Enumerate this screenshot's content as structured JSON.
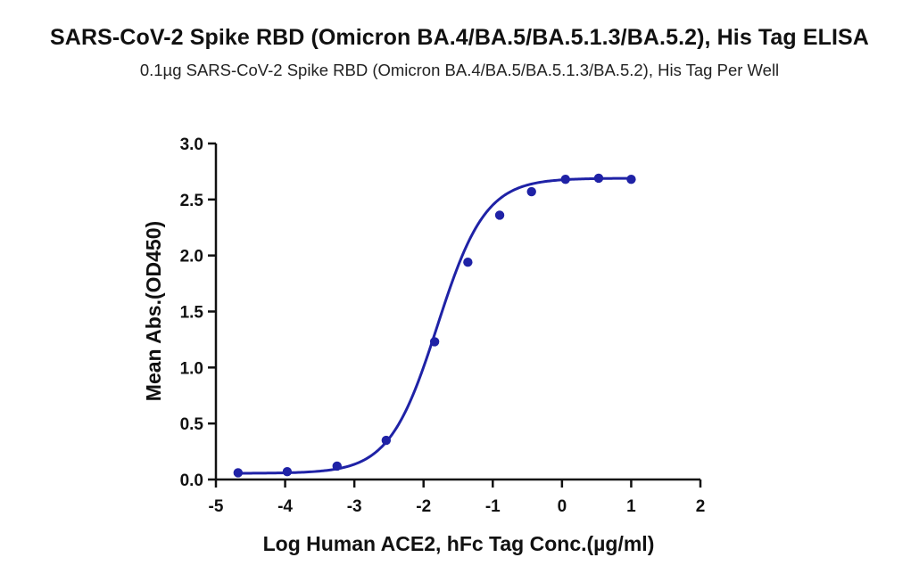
{
  "title": "SARS-CoV-2 Spike RBD (Omicron BA.4/BA.5/BA.5.1.3/BA.5.2), His Tag ELISA",
  "subtitle": "0.1µg SARS-CoV-2 Spike RBD (Omicron BA.4/BA.5/BA.5.1.3/BA.5.2), His Tag Per Well",
  "colors": {
    "series": "#1f22a6",
    "axis": "#111111"
  },
  "chart_data": {
    "type": "scatter",
    "title": "SARS-CoV-2 Spike RBD (Omicron BA.4/BA.5/BA.5.1.3/BA.5.2), His Tag ELISA",
    "subtitle": "0.1µg SARS-CoV-2 Spike RBD (Omicron BA.4/BA.5/BA.5.1.3/BA.5.2), His Tag Per Well",
    "xlabel": "Log Human ACE2, hFc Tag Conc.(µg/ml)",
    "ylabel": "Mean Abs.(OD450)",
    "xlim": [
      -5,
      2
    ],
    "ylim": [
      0,
      3.0
    ],
    "xticks": [
      "-5",
      "-4",
      "-3",
      "-2",
      "-1",
      "0",
      "1",
      "2"
    ],
    "yticks": [
      "0.0",
      "0.5",
      "1.0",
      "1.5",
      "2.0",
      "2.5",
      "3.0"
    ],
    "grid": false,
    "legend": "none",
    "series": [
      {
        "x": [
          -4.68,
          -3.97,
          -3.25,
          -2.54,
          -1.84,
          -1.36,
          -0.9,
          -0.44,
          0.05,
          0.53,
          1.0
        ],
        "y": [
          0.06,
          0.07,
          0.12,
          0.35,
          1.23,
          1.94,
          2.36,
          2.57,
          2.68,
          2.69,
          2.68
        ],
        "fit": "4PL sigmoidal curve"
      }
    ]
  }
}
